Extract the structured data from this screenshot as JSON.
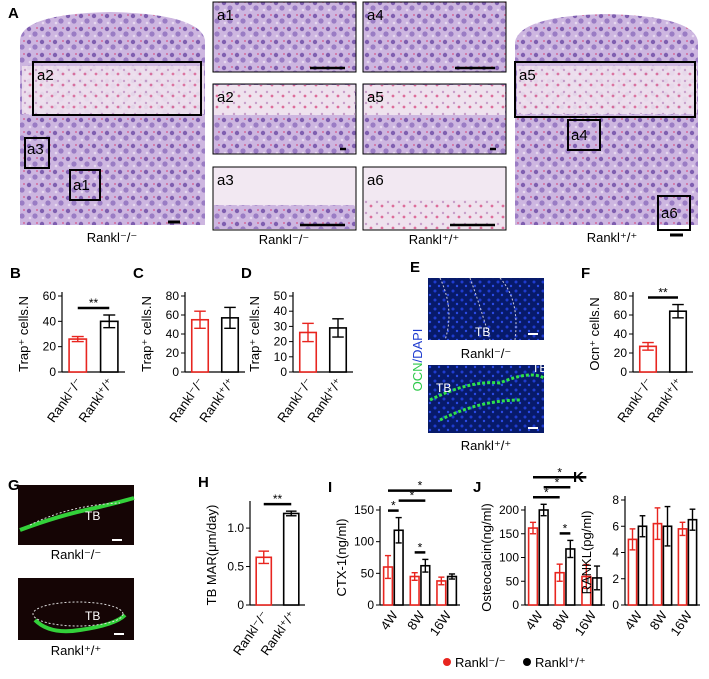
{
  "histology": {
    "panel": "A",
    "left_insets": [
      "a2",
      "a3",
      "a1"
    ],
    "right_insets": [
      "a5",
      "a4",
      "a6"
    ],
    "zooms": [
      "a1",
      "a4",
      "a2",
      "a5",
      "a3",
      "a6"
    ],
    "labels": [
      "Rankl⁻/⁻",
      "Rankl⁻/⁻",
      "Rankl⁺/⁺",
      "Rankl⁺/⁺"
    ]
  },
  "fluorescence_E": {
    "panel": "E",
    "stain": [
      "OCN",
      "/DAPI"
    ],
    "labels": [
      "Rankl⁻/⁻",
      "Rankl⁺/⁺"
    ],
    "tb": [
      "TB",
      "TB",
      "TB"
    ]
  },
  "fluorescence_G": {
    "panel": "G",
    "labels": [
      "Rankl⁻/⁻",
      "Rankl⁺/⁺"
    ],
    "tb": [
      "TB",
      "TB"
    ]
  },
  "chart_data": [
    {
      "panel": "B",
      "type": "bar",
      "ylabel": "Trap⁺ cells.N",
      "categories": [
        "Rankl⁻/⁻",
        "Rankl⁺/⁺"
      ],
      "values": [
        26,
        40
      ],
      "errors": [
        2,
        5
      ],
      "colors": [
        "#e8251f",
        "#000000"
      ],
      "ylim": [
        0,
        60
      ],
      "yticks": [
        0,
        20,
        40,
        60
      ],
      "annotations": [
        {
          "text": "**",
          "between": [
            0,
            1
          ]
        }
      ]
    },
    {
      "panel": "C",
      "type": "bar",
      "ylabel": "Trap⁺ cells.N",
      "categories": [
        "Rankl⁻/⁻",
        "Rankl⁺/⁺"
      ],
      "values": [
        55,
        57
      ],
      "errors": [
        9,
        11
      ],
      "colors": [
        "#e8251f",
        "#000000"
      ],
      "ylim": [
        0,
        80
      ],
      "yticks": [
        0,
        20,
        40,
        60,
        80
      ]
    },
    {
      "panel": "D",
      "type": "bar",
      "ylabel": "Trap⁺ cells.N",
      "categories": [
        "Rankl⁻/⁻",
        "Rankl⁺/⁺"
      ],
      "values": [
        26,
        29
      ],
      "errors": [
        6,
        6
      ],
      "colors": [
        "#e8251f",
        "#000000"
      ],
      "ylim": [
        0,
        50
      ],
      "yticks": [
        0,
        10,
        20,
        30,
        40,
        50
      ]
    },
    {
      "panel": "F",
      "type": "bar",
      "ylabel": "Ocn⁺ cells.N",
      "categories": [
        "Rankl⁻/⁻",
        "Rankl⁺/⁺"
      ],
      "values": [
        27,
        64
      ],
      "errors": [
        4,
        7
      ],
      "colors": [
        "#e8251f",
        "#000000"
      ],
      "ylim": [
        0,
        80
      ],
      "yticks": [
        0,
        20,
        40,
        60,
        80
      ],
      "annotations": [
        {
          "text": "**",
          "between": [
            0,
            1
          ]
        }
      ]
    },
    {
      "panel": "H",
      "type": "bar",
      "ylabel": "TB MAR(μm/day)",
      "categories": [
        "Rankl⁻/⁻",
        "Rankl⁺/⁺"
      ],
      "values": [
        0.62,
        1.19
      ],
      "errors": [
        0.08,
        0.03
      ],
      "colors": [
        "#e8251f",
        "#000000"
      ],
      "ylim": [
        0,
        1.3
      ],
      "yticks": [
        0,
        0.5,
        {
          "value": 1,
          "label": "1.0"
        }
      ],
      "annotations": [
        {
          "text": "**",
          "between": [
            0,
            1
          ]
        }
      ]
    },
    {
      "panel": "I",
      "type": "bar",
      "ylabel": "CTX-1(ng/ml)",
      "categories": [
        "4W",
        "8W",
        "16W"
      ],
      "series": [
        {
          "color": "#e8251f",
          "values": [
            60,
            45,
            38
          ],
          "errors": [
            18,
            6,
            6
          ]
        },
        {
          "color": "#000000",
          "values": [
            118,
            62,
            45
          ],
          "errors": [
            20,
            10,
            4
          ]
        }
      ],
      "ylim": [
        0,
        150
      ],
      "yticks": [
        0,
        50,
        100,
        150
      ],
      "annotations": [
        {
          "text": "*",
          "between": [
            [
              0,
              0
            ],
            [
              1,
              0
            ]
          ]
        },
        {
          "text": "*",
          "between": [
            [
              0,
              1
            ],
            [
              1,
              1
            ]
          ]
        },
        {
          "text": "*",
          "between": [
            [
              1,
              0
            ],
            [
              1,
              1
            ]
          ]
        },
        {
          "text": "*",
          "between": [
            [
              0,
              0
            ],
            [
              1,
              2
            ]
          ]
        }
      ]
    },
    {
      "panel": "J",
      "type": "bar",
      "ylabel": "Osteocalcin(ng/ml)",
      "categories": [
        "4W",
        "8W",
        "16W"
      ],
      "series": [
        {
          "name": "Rankl⁻/⁻",
          "color": "#e8251f",
          "values": [
            162,
            68,
            60
          ],
          "errors": [
            12,
            18,
            25
          ]
        },
        {
          "name": "Rankl⁺/⁺",
          "color": "#000000",
          "values": [
            200,
            118,
            57
          ],
          "errors": [
            12,
            18,
            25
          ]
        }
      ],
      "legend": "bottom",
      "ylim": [
        0,
        200
      ],
      "yticks": [
        0,
        50,
        100,
        150,
        200
      ],
      "annotations": [
        {
          "text": "*",
          "between": [
            [
              0,
              0
            ],
            [
              0,
              1
            ]
          ]
        },
        {
          "text": "*",
          "between": [
            [
              1,
              0
            ],
            [
              1,
              1
            ]
          ]
        },
        {
          "text": "*",
          "between": [
            [
              0,
              1
            ],
            [
              1,
              1
            ]
          ]
        },
        {
          "text": "*",
          "between": [
            [
              0,
              0
            ],
            [
              0,
              2
            ]
          ]
        }
      ]
    },
    {
      "panel": "K",
      "type": "bar",
      "ylabel": "RANKL(pg/ml)",
      "categories": [
        "4W",
        "8W",
        "16W"
      ],
      "series": [
        {
          "color": "#e8251f",
          "values": [
            5.0,
            6.2,
            5.8
          ],
          "errors": [
            0.8,
            1.2,
            0.5
          ]
        },
        {
          "color": "#000000",
          "values": [
            6.0,
            6.0,
            6.5
          ],
          "errors": [
            0.8,
            1.5,
            0.8
          ]
        }
      ],
      "ylim": [
        0,
        8
      ],
      "yticks": [
        0,
        2,
        4,
        6,
        8
      ]
    }
  ]
}
